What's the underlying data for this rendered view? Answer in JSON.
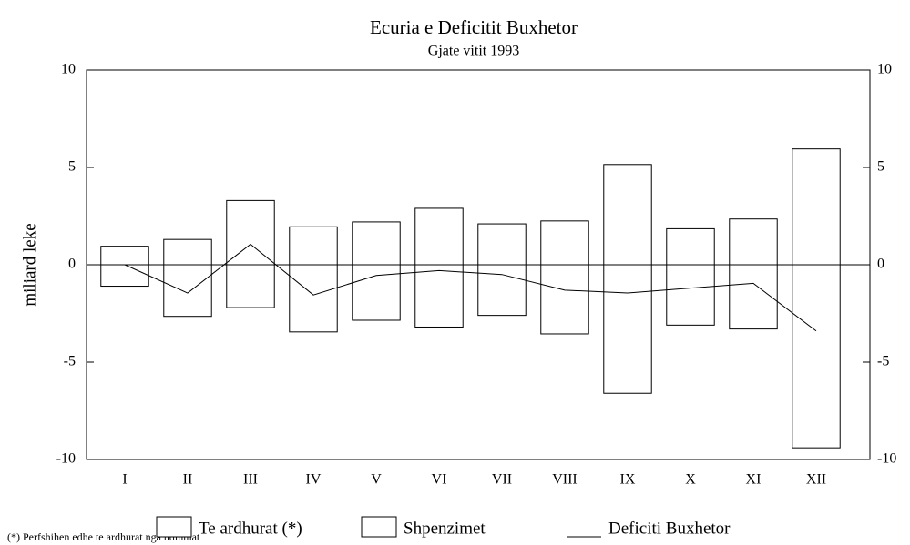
{
  "chart_data": {
    "type": "bar",
    "title": "Ecuria e Deficitit Buxhetor",
    "subtitle": "Gjate vitit 1993",
    "y_label": "miliard leke",
    "footnote": "(*) Perfshihen edhe te ardhurat nga ndihmat",
    "categories": [
      "I",
      "II",
      "III",
      "IV",
      "V",
      "VI",
      "VII",
      "VIII",
      "IX",
      "X",
      "XI",
      "XII"
    ],
    "series": [
      {
        "name": "Te ardhurat (*)",
        "type": "bar",
        "color": "#ffffff",
        "values": [
          0.95,
          1.3,
          3.3,
          1.95,
          2.2,
          2.9,
          2.1,
          2.25,
          5.15,
          1.85,
          2.35,
          5.95
        ]
      },
      {
        "name": "Shpenzimet",
        "type": "bar",
        "color": "#ffffff",
        "values": [
          -1.1,
          -2.65,
          -2.2,
          -3.45,
          -2.85,
          -3.2,
          -2.6,
          -3.55,
          -6.6,
          -3.1,
          -3.3,
          -9.4
        ]
      },
      {
        "name": "Deficiti Buxhetor",
        "type": "line",
        "color": "#000000",
        "values": [
          0,
          -1.45,
          1.05,
          -1.55,
          -0.55,
          -0.3,
          -0.5,
          -1.3,
          -1.45,
          -1.2,
          -0.95,
          -3.4
        ]
      }
    ],
    "ylim": [
      -10,
      10
    ],
    "yticks": [
      -10,
      -5,
      0,
      5,
      10
    ],
    "y2lim": [
      -10,
      10
    ],
    "y2ticks": [
      -10,
      -5,
      0,
      5,
      10
    ],
    "grid": false,
    "legend": "bottom"
  }
}
